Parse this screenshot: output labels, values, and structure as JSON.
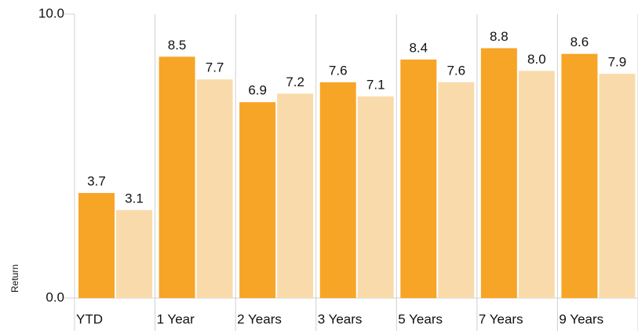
{
  "chart_data": {
    "type": "bar",
    "y_label": "Return",
    "categories": [
      "YTD",
      "1 Year",
      "2 Years",
      "3 Years",
      "5 Years",
      "7 Years",
      "9 Years"
    ],
    "series": [
      {
        "color": "#f7a526",
        "values": [
          3.7,
          8.5,
          6.9,
          7.6,
          8.4,
          8.8,
          8.6
        ],
        "value_labels": [
          "3.7",
          "8.5",
          "6.9",
          "7.6",
          "8.4",
          "8.8",
          "8.6"
        ]
      },
      {
        "color": "#f9dbab",
        "values": [
          3.1,
          7.7,
          7.2,
          7.1,
          7.6,
          8.0,
          7.9
        ],
        "value_labels": [
          "3.1",
          "7.7",
          "7.2",
          "7.1",
          "7.6",
          "8.0",
          "7.9"
        ]
      }
    ],
    "ylim": [
      0,
      10
    ],
    "yticks": [
      {
        "value": 0,
        "label": "0.0"
      },
      {
        "value": 10,
        "label": "10.0"
      }
    ]
  }
}
